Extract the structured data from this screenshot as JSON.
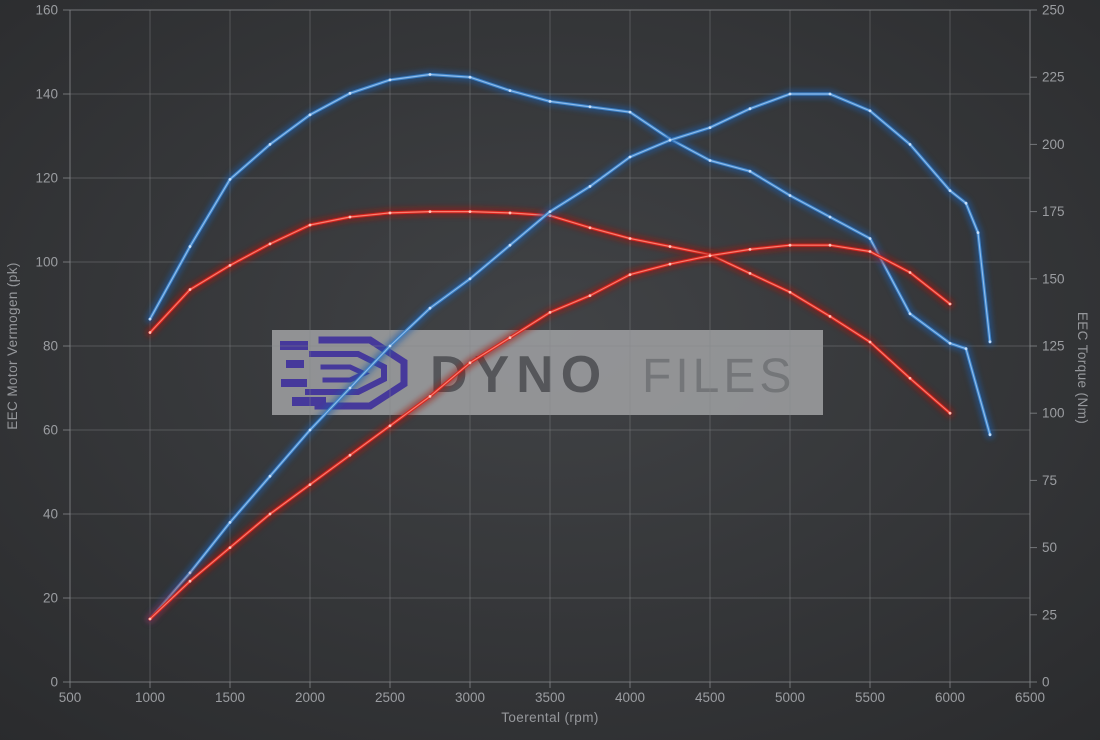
{
  "watermark": {
    "brand_part1": "DYNO",
    "brand_part2": "FILES"
  },
  "colors": {
    "background_center": "#414346",
    "background_edge": "#2a2b2d",
    "grid": "#85878a",
    "tick_label": "#9b9da1",
    "axis_title": "#96989c",
    "watermark_box": "#a6a7a9",
    "logo_purple": "#4839a8",
    "text_dyno": "#595a5e",
    "text_files": "#7c7e81",
    "blue": "#3c82c8",
    "red": "#da241e"
  },
  "chart_data": {
    "type": "line",
    "title": "",
    "xlabel": "Toerental (rpm)",
    "ylabel_left": "EEC Motor Vermogen (pk)",
    "ylabel_right": "EEC Torque (Nm)",
    "x_range": [
      500,
      6500
    ],
    "x_tick_step": 500,
    "y_left_range": [
      0,
      160
    ],
    "y_left_tick_step": 20,
    "y_right_range": [
      0,
      250
    ],
    "y_right_tick_step": 25,
    "grid": true,
    "legend": false,
    "series": [
      {
        "name": "blue_torque",
        "axis": "right",
        "unit": "Nm",
        "color": "#3c82c8",
        "glow": "#1d5dab",
        "core": "#9cc6f0",
        "dot": "#d9ebff",
        "x": [
          1000,
          1250,
          1500,
          1750,
          2000,
          2250,
          2500,
          2750,
          3000,
          3250,
          3500,
          3750,
          4000,
          4250,
          4500,
          4750,
          5000,
          5250,
          5500,
          5750,
          6000,
          6100,
          6250
        ],
        "values": [
          135,
          162,
          187,
          200,
          211,
          219,
          224,
          226,
          225,
          220,
          216,
          214,
          212,
          202,
          194,
          190,
          181,
          173,
          165,
          137,
          126,
          124,
          92
        ]
      },
      {
        "name": "red_torque",
        "axis": "right",
        "unit": "Nm",
        "color": "#da241e",
        "glow": "#a11310",
        "core": "#ff8d7d",
        "dot": "#ffd9cf",
        "x": [
          1000,
          1250,
          1500,
          1750,
          2000,
          2250,
          2500,
          2750,
          3000,
          3250,
          3500,
          3750,
          4000,
          4250,
          4500,
          4750,
          5000,
          5250,
          5500,
          5750,
          6000
        ],
        "values": [
          130,
          146,
          155,
          163,
          170,
          173,
          174.5,
          175,
          175,
          174.5,
          173.5,
          169,
          165,
          162,
          159,
          152,
          145,
          136,
          126.5,
          113,
          100
        ]
      },
      {
        "name": "blue_power",
        "axis": "left",
        "unit": "pk",
        "color": "#3c82c8",
        "glow": "#1d5dab",
        "core": "#9cc6f0",
        "dot": "#d9ebff",
        "x": [
          1000,
          1250,
          1500,
          1750,
          2000,
          2250,
          2500,
          2750,
          3000,
          3250,
          3500,
          3750,
          4000,
          4250,
          4500,
          4750,
          5000,
          5250,
          5500,
          5750,
          6000,
          6100,
          6175,
          6250
        ],
        "values": [
          15,
          26,
          38,
          49,
          60,
          70,
          80,
          89,
          96,
          104,
          112,
          118,
          125,
          129,
          132,
          136.5,
          140,
          140,
          136,
          128,
          117,
          114,
          107,
          81
        ]
      },
      {
        "name": "red_power",
        "axis": "left",
        "unit": "pk",
        "color": "#da241e",
        "glow": "#a11310",
        "core": "#ff8d7d",
        "dot": "#ffd9cf",
        "x": [
          1000,
          1250,
          1500,
          1750,
          2000,
          2250,
          2500,
          2750,
          3000,
          3250,
          3500,
          3750,
          4000,
          4250,
          4500,
          4750,
          5000,
          5250,
          5500,
          5750,
          6000
        ],
        "values": [
          15,
          24,
          32,
          40,
          47,
          54,
          61,
          68,
          76,
          82,
          88,
          92,
          97,
          99.5,
          101.5,
          103,
          104,
          104,
          102.5,
          97.5,
          90
        ]
      }
    ]
  }
}
